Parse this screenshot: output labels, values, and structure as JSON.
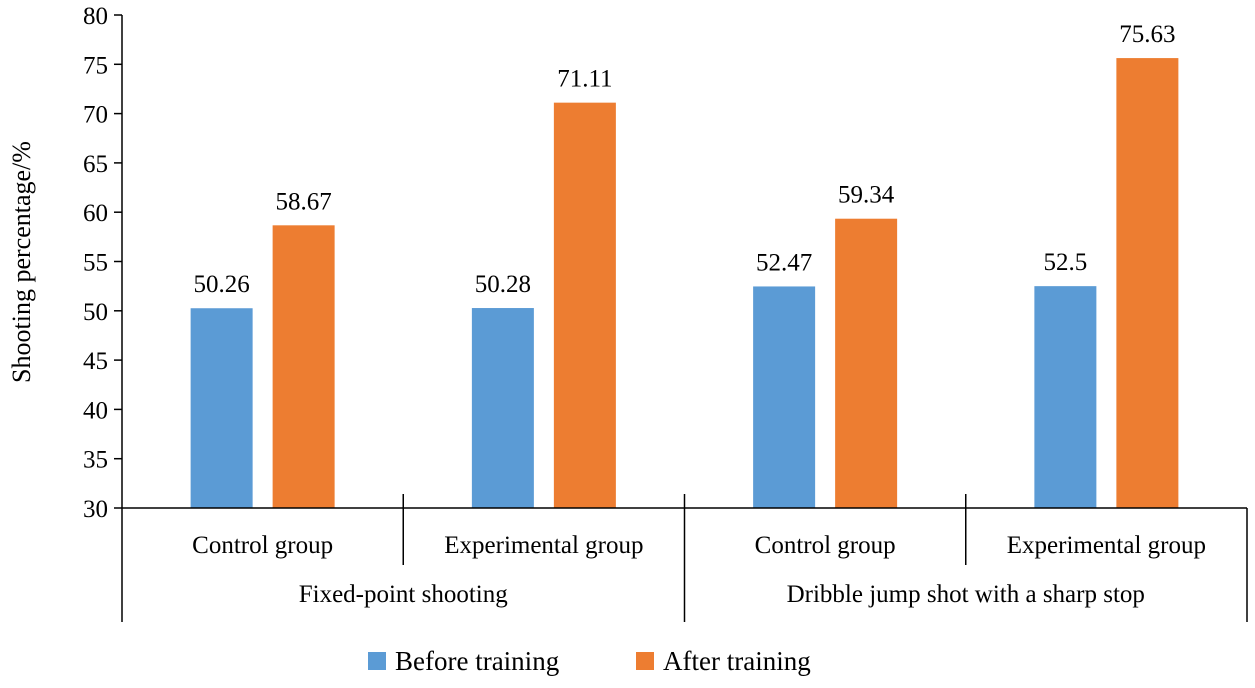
{
  "chart_data": {
    "type": "bar",
    "title": "",
    "ylabel": "Shooting percentage/%",
    "ylim": [
      30,
      80
    ],
    "yticks": [
      30,
      35,
      40,
      45,
      50,
      55,
      60,
      65,
      70,
      75,
      80
    ],
    "grid": false,
    "legend_position": "bottom",
    "categories": [
      "Control group",
      "Experimental group",
      "Control group",
      "Experimental group"
    ],
    "groups": [
      {
        "label": "Fixed-point shooting",
        "categories": [
          0,
          1
        ]
      },
      {
        "label": "Dribble jump shot with a sharp stop",
        "categories": [
          2,
          3
        ]
      }
    ],
    "series": [
      {
        "name": "Before training",
        "color": "#5b9bd5",
        "values": [
          50.26,
          50.28,
          52.47,
          52.5
        ]
      },
      {
        "name": "After training",
        "color": "#ed7d31",
        "values": [
          58.67,
          71.11,
          59.34,
          75.63
        ]
      }
    ]
  }
}
